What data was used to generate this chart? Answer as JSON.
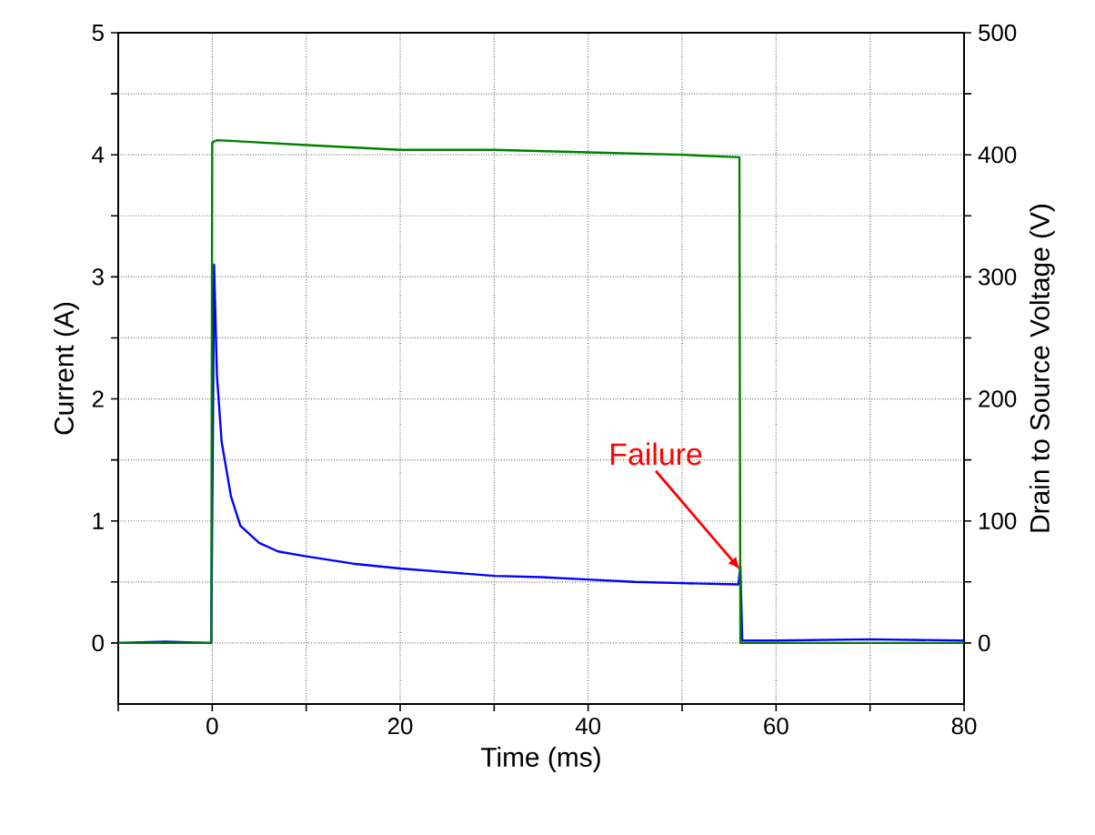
{
  "chart_data": {
    "type": "line",
    "xlabel": "Time (ms)",
    "ylabel": "Current (A)",
    "y2label": "Drain to Source Voltage (V)",
    "xlim": [
      -10,
      80
    ],
    "ylim": [
      -0.5,
      5
    ],
    "y2lim": [
      -50,
      500
    ],
    "xticks": [
      {
        "value": -10,
        "label": null
      },
      0,
      {
        "value": 10,
        "label": null
      },
      20,
      {
        "value": 30,
        "label": null
      },
      40,
      {
        "value": 50,
        "label": null
      },
      60,
      {
        "value": 70,
        "label": null
      },
      80
    ],
    "yticks": [
      0,
      {
        "value": 0.5,
        "label": null
      },
      1,
      {
        "value": 1.5,
        "label": null
      },
      2,
      {
        "value": 2.5,
        "label": null
      },
      3,
      {
        "value": 3.5,
        "label": null
      },
      4,
      {
        "value": 4.5,
        "label": null
      },
      5
    ],
    "y2ticks": [
      0,
      {
        "value": 50,
        "label": null
      },
      100,
      {
        "value": 150,
        "label": null
      },
      200,
      {
        "value": 250,
        "label": null
      },
      300,
      {
        "value": 350,
        "label": null
      },
      400,
      {
        "value": 450,
        "label": null
      },
      500
    ],
    "grid": true,
    "series": [
      {
        "color": "#0000ff",
        "x": [
          -10,
          -5,
          -0.1,
          0.05,
          0.2,
          0.5,
          1,
          2,
          3,
          5,
          7,
          10,
          15,
          20,
          25,
          30,
          35,
          40,
          45,
          50,
          56,
          56.2,
          56.4,
          60,
          70,
          80
        ],
        "values": [
          0,
          0.01,
          0,
          1.5,
          3.1,
          2.2,
          1.65,
          1.2,
          0.96,
          0.82,
          0.75,
          0.71,
          0.65,
          0.61,
          0.58,
          0.55,
          0.54,
          0.52,
          0.5,
          0.49,
          0.48,
          0.63,
          0.02,
          0.02,
          0.03,
          0.02
        ]
      },
      {
        "color": "#008000",
        "axis": "y2",
        "x": [
          -10,
          -0.1,
          0,
          0.5,
          10,
          20,
          30,
          40,
          50,
          56.1,
          56.2,
          60,
          80
        ],
        "values": [
          0,
          0,
          410,
          412,
          408,
          404,
          404,
          402,
          400,
          398,
          0,
          0,
          0
        ]
      }
    ],
    "annotations": [
      {
        "text": "Failure",
        "x": 56.2,
        "y": 0.6
      }
    ]
  }
}
